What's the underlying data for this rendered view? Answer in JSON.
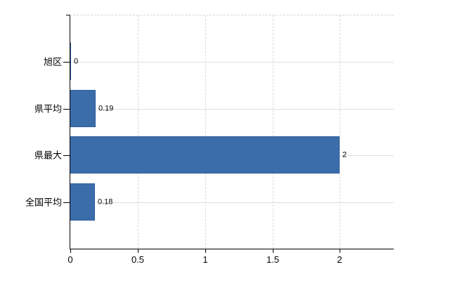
{
  "chart_data": {
    "type": "bar",
    "orientation": "horizontal",
    "title": "",
    "xlabel": "",
    "ylabel": "",
    "categories": [
      "旭区",
      "県平均",
      "県最大",
      "全国平均"
    ],
    "values": [
      0,
      0.19,
      2,
      0.18
    ],
    "value_labels": [
      "0",
      "0.19",
      "2",
      "0.18"
    ],
    "x_ticks": [
      0,
      0.5,
      1,
      1.5,
      2
    ],
    "x_tick_labels": [
      "0",
      "0.5",
      "1",
      "1.5",
      "2"
    ],
    "xlim": [
      0,
      2.4
    ],
    "grid": true,
    "legend": false,
    "series": [
      {
        "name": "",
        "values": [
          0,
          0.19,
          2,
          0.18
        ]
      }
    ]
  },
  "colors": {
    "bar_fill": "#3b6dab",
    "bar_border": "#2c5f9e",
    "h_gridline": "#dbe2db",
    "v_gridline": "#d9d9d9",
    "plot_top_border": "#d4d4d4",
    "axis": "#000000",
    "text": "#000000",
    "background": "#ffffff"
  }
}
